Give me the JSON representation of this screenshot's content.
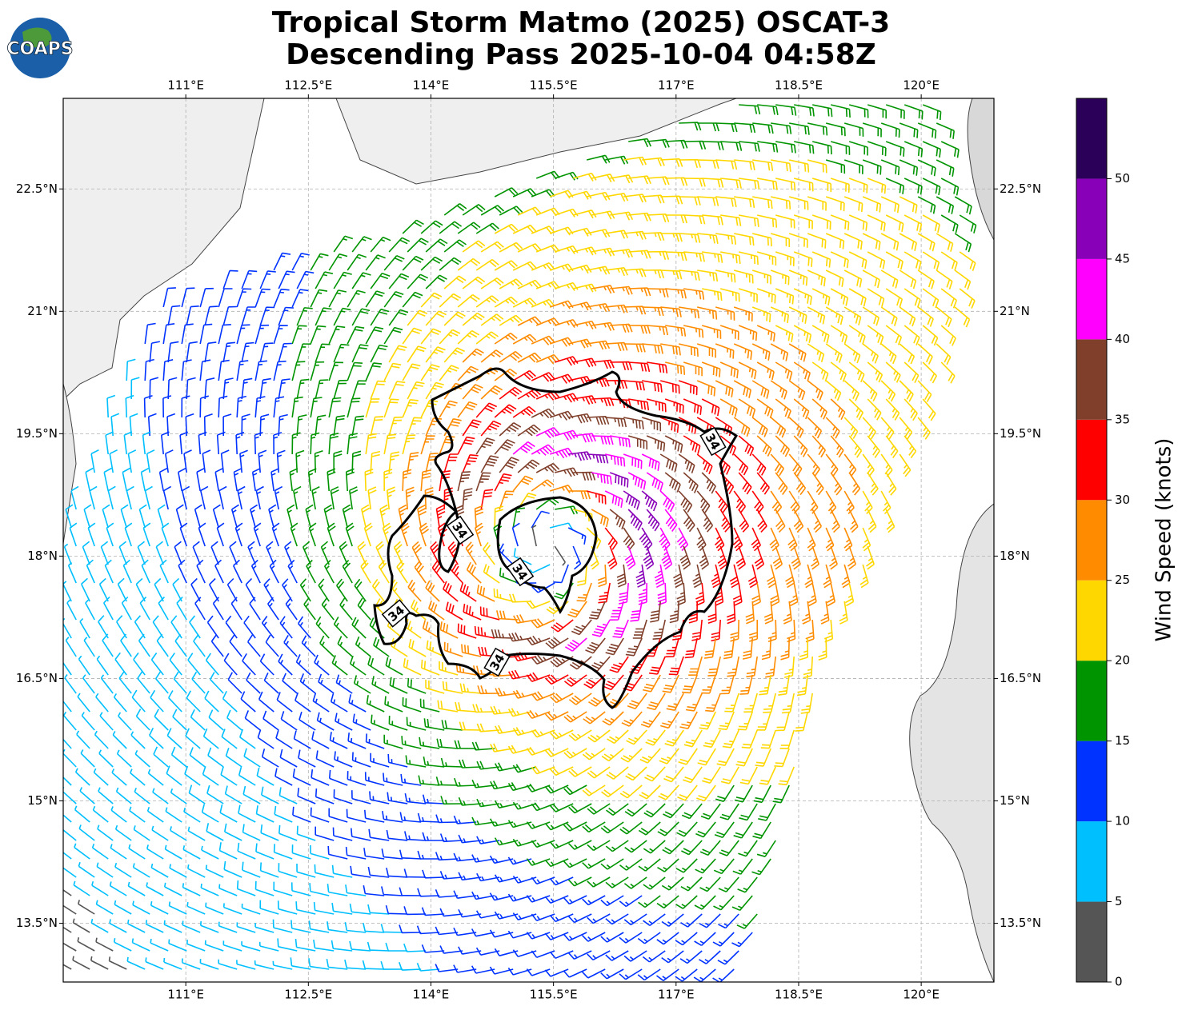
{
  "title": [
    "Tropical Storm Matmo (2025) OSCAT-3",
    "Descending Pass 2025-10-04 04:58Z"
  ],
  "logo": "COAPS",
  "map": {
    "xlim": [
      109.5,
      120.89
    ],
    "ylim": [
      12.78,
      23.61
    ],
    "xticks": [
      {
        "value": 111,
        "label": "111°E"
      },
      {
        "value": 112.5,
        "label": "112.5°E"
      },
      {
        "value": 114,
        "label": "114°E"
      },
      {
        "value": 115.5,
        "label": "115.5°E"
      },
      {
        "value": 117,
        "label": "117°E"
      },
      {
        "value": 118.5,
        "label": "118.5°E"
      },
      {
        "value": 120,
        "label": "120°E"
      }
    ],
    "yticks": [
      {
        "value": 22.5,
        "label": "22.5°N"
      },
      {
        "value": 21,
        "label": "21°N"
      },
      {
        "value": 19.5,
        "label": "19.5°N"
      },
      {
        "value": 18,
        "label": "18°N"
      },
      {
        "value": 16.5,
        "label": "16.5°N"
      },
      {
        "value": 15,
        "label": "15°N"
      },
      {
        "value": 13.5,
        "label": "13.5°N"
      }
    ],
    "grid": true
  },
  "contour_labels": [
    "34",
    "34",
    "34",
    "34",
    "34"
  ],
  "colorbar": {
    "label": "Wind Speed (knots)",
    "lim": [
      0,
      55
    ],
    "ticks": [
      0,
      5,
      10,
      15,
      20,
      25,
      30,
      35,
      40,
      45,
      50
    ],
    "colors": [
      "#555555",
      "#00bfff",
      "#0033ff",
      "#009400",
      "#ffd700",
      "#ff8c00",
      "#ff0000",
      "#7f3f2a",
      "#ff00ff",
      "#8800b8",
      "#2b0058"
    ]
  }
}
